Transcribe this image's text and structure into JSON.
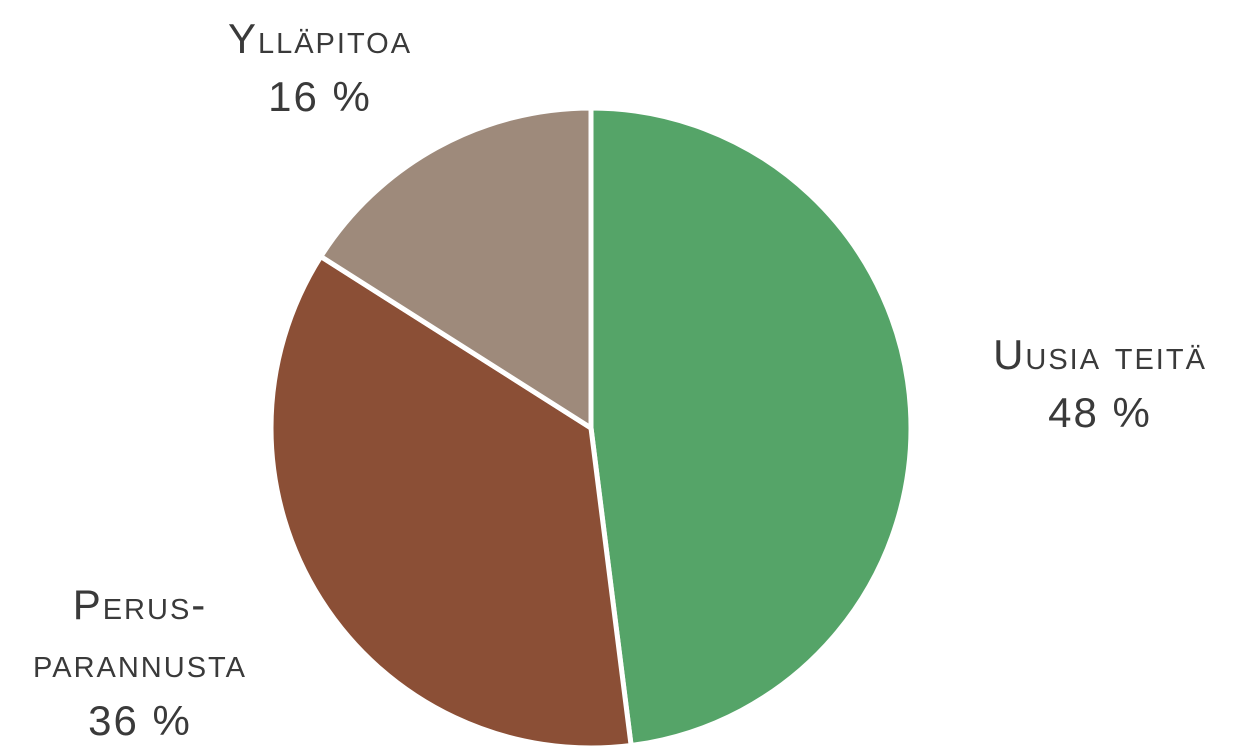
{
  "chart_data": {
    "type": "pie",
    "categories": [
      "Uusia teitä",
      "Perus-parannusta",
      "Ylläpitoa"
    ],
    "values": [
      48,
      36,
      16
    ],
    "value_labels": [
      "48 %",
      "36 %",
      "16 %"
    ],
    "colors": [
      "#55a468",
      "#8b4f36",
      "#9e8a7b"
    ]
  }
}
